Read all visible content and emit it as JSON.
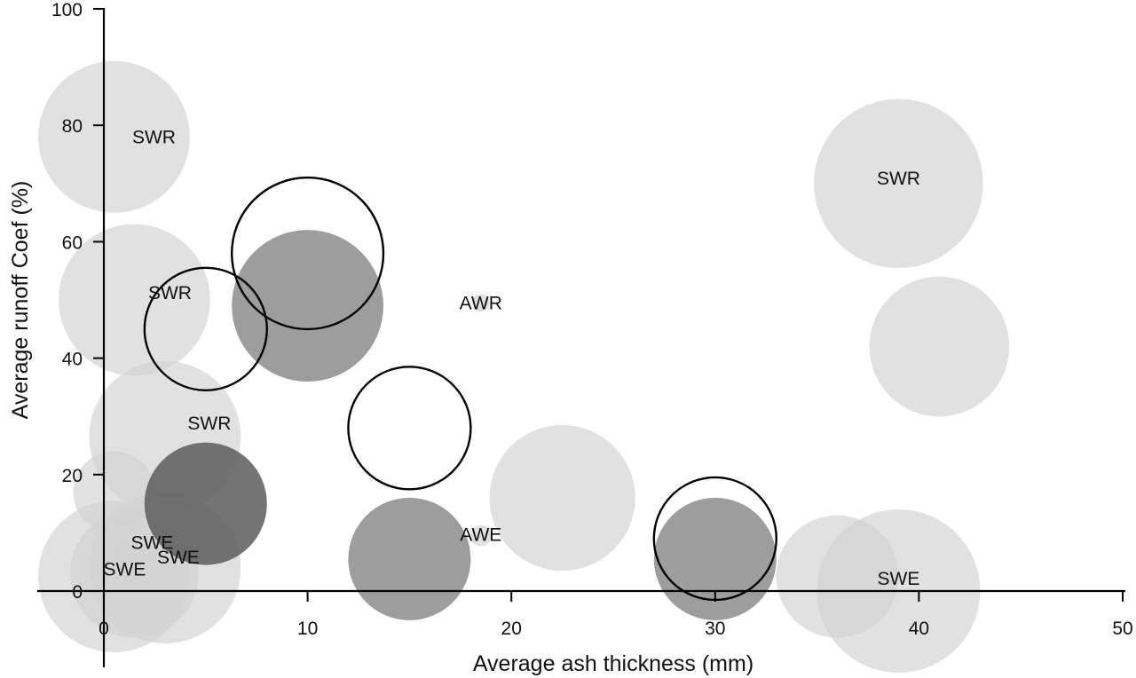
{
  "chart_data": {
    "type": "scatter",
    "title": "",
    "xlabel": "Average ash thickness (mm)",
    "ylabel": "Average runoff Coef (%)",
    "xlim": [
      0,
      50
    ],
    "ylim": [
      0,
      100
    ],
    "xticks": [
      0,
      10,
      20,
      30,
      40,
      50
    ],
    "yticks": [
      0,
      20,
      40,
      60,
      80,
      100
    ],
    "grid": false,
    "legend": "none",
    "styles": {
      "light": {
        "fill": "#d3d3d3",
        "opacity": 0.68,
        "stroke": "none"
      },
      "mid": {
        "fill": "#777777",
        "opacity": 0.72,
        "stroke": "none"
      },
      "dark": {
        "fill": "#5c5c5c",
        "opacity": 0.85,
        "stroke": "none"
      },
      "outline": {
        "fill": "none",
        "opacity": 1,
        "stroke": "#000000"
      }
    },
    "points": [
      {
        "x": 0.5,
        "y": 78,
        "size": 13,
        "style": "light",
        "label": "SWR"
      },
      {
        "x": 1.5,
        "y": 50,
        "size": 13,
        "style": "light",
        "label": "SWR"
      },
      {
        "x": 3,
        "y": 26.5,
        "size": 13,
        "style": "light",
        "label": "SWR"
      },
      {
        "x": 0.5,
        "y": 17,
        "size": 7,
        "style": "light"
      },
      {
        "x": 0.5,
        "y": 2.5,
        "size": 13,
        "style": "light",
        "label": "SWE"
      },
      {
        "x": 1.5,
        "y": 3,
        "size": 11,
        "style": "light"
      },
      {
        "x": 3,
        "y": 4,
        "size": 13,
        "style": "light",
        "label": "SWE"
      },
      {
        "x": 1.5,
        "y": 6,
        "size": 4,
        "style": "light",
        "label": "SWE"
      },
      {
        "x": 18.5,
        "y": 49.5,
        "size": 1.5,
        "style": "light",
        "label": "AWR"
      },
      {
        "x": 18.5,
        "y": 9.5,
        "size": 1.8,
        "style": "light",
        "label": "AWE"
      },
      {
        "x": 22.5,
        "y": 16,
        "size": 12.5,
        "style": "light"
      },
      {
        "x": 36,
        "y": 2.5,
        "size": 10.5,
        "style": "light"
      },
      {
        "x": 39,
        "y": 70,
        "size": 14.5,
        "style": "light",
        "label": "SWR"
      },
      {
        "x": 41,
        "y": 42,
        "size": 12,
        "style": "light"
      },
      {
        "x": 39,
        "y": 0,
        "size": 14,
        "style": "light",
        "label": "SWE"
      },
      {
        "x": 5,
        "y": 15,
        "size": 10.5,
        "style": "dark"
      },
      {
        "x": 10,
        "y": 49,
        "size": 13,
        "style": "mid"
      },
      {
        "x": 15,
        "y": 5.5,
        "size": 10.5,
        "style": "mid"
      },
      {
        "x": 30,
        "y": 5.5,
        "size": 10.5,
        "style": "mid"
      },
      {
        "x": 5,
        "y": 45,
        "size": 10.5,
        "style": "outline"
      },
      {
        "x": 10,
        "y": 58,
        "size": 13,
        "style": "outline"
      },
      {
        "x": 15,
        "y": 28,
        "size": 10.5,
        "style": "outline"
      },
      {
        "x": 30,
        "y": 9,
        "size": 10.5,
        "style": "outline"
      }
    ]
  }
}
